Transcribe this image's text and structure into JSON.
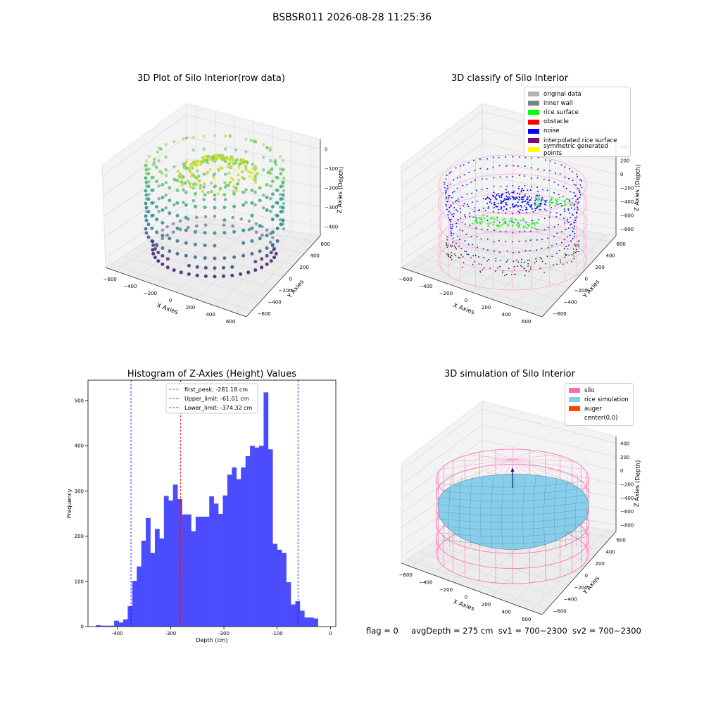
{
  "figure": {
    "suptitle": "BSBSR011 2026-08-28 11:25:36",
    "status_line": {
      "flag": "flag = 0",
      "avg_depth": "avgDepth = 275 cm",
      "sv1": "sv1 = 700~2300",
      "sv2": "sv2 = 700~2300"
    }
  },
  "panels": {
    "raw": {
      "title": "3D Plot of Silo Interior(row data)",
      "xlabel": "X Axies",
      "ylabel": "Y Axies",
      "zlabel": "Z Axies (Depth)"
    },
    "classify": {
      "title": "3D classify of Silo Interior",
      "xlabel": "X Axies",
      "ylabel": "Y Axies",
      "zlabel": "Z Axies (Depth)",
      "legend": [
        {
          "label": "original data",
          "color": "#b3b3b3"
        },
        {
          "label": "inner wall",
          "color": "#808080"
        },
        {
          "label": "rice surface",
          "color": "#00ff00"
        },
        {
          "label": "obstacle",
          "color": "#ff0000"
        },
        {
          "label": "noise",
          "color": "#0000ff"
        },
        {
          "label": "interpolated rice surface",
          "color": "#800080"
        },
        {
          "label": "symmetric generated points",
          "color": "#ffff00"
        }
      ]
    },
    "simulation": {
      "title": "3D simulation of Silo Interior",
      "xlabel": "X Axies",
      "ylabel": "Y Axies",
      "zlabel": "Z Axies (Depth)",
      "legend": [
        {
          "label": "silo",
          "color": "#ff69b4"
        },
        {
          "label": "rice simulation",
          "color": "#87ceeb"
        },
        {
          "label": "auger",
          "color": "#ff4500"
        },
        {
          "label": "center(0,0)",
          "color": "#ffffff"
        }
      ]
    }
  },
  "chart_data": [
    {
      "type": "scatter",
      "title": "3D Plot of Silo Interior(row data)",
      "xlabel": "X Axies",
      "ylabel": "Y Axies",
      "zlabel": "Z Axies (Depth)",
      "x_ticks": [
        "−600",
        "−400",
        "−200",
        "0",
        "200",
        "400",
        "600"
      ],
      "y_ticks": [
        "−600",
        "−400",
        "−200",
        "0",
        "200",
        "400",
        "600"
      ],
      "z_ticks": [
        "0",
        "−100",
        "−200",
        "−300",
        "−400"
      ],
      "xlim": [
        -650,
        650
      ],
      "ylim": [
        -650,
        650
      ],
      "zlim": [
        -450,
        0
      ],
      "colormap": "viridis",
      "grid": true
    },
    {
      "type": "scatter",
      "title": "3D classify of Silo Interior",
      "xlabel": "X Axies",
      "ylabel": "Y Axies",
      "zlabel": "Z Axies (Depth)",
      "x_ticks": [
        "−600",
        "−400",
        "−200",
        "0",
        "200",
        "400",
        "600"
      ],
      "y_ticks": [
        "−600",
        "−400",
        "−200",
        "0",
        "200",
        "400",
        "600"
      ],
      "z_ticks": [
        "400",
        "200",
        "0",
        "−200",
        "−400",
        "−600",
        "−800"
      ],
      "xlim": [
        -650,
        650
      ],
      "ylim": [
        -650,
        650
      ],
      "zlim": [
        -900,
        450
      ],
      "series": [
        {
          "name": "original data"
        },
        {
          "name": "inner wall"
        },
        {
          "name": "rice surface"
        },
        {
          "name": "obstacle"
        },
        {
          "name": "noise"
        },
        {
          "name": "interpolated rice surface"
        },
        {
          "name": "symmetric generated points"
        }
      ],
      "legend": "top-right",
      "grid": true
    },
    {
      "type": "bar",
      "title": "Histogram of Z-Axies (Height) Values",
      "xlabel": "Depth (cm)",
      "ylabel": "Frequency",
      "bin_start": -440,
      "bin_width": 8.5,
      "values": [
        3,
        2,
        2,
        2,
        13,
        9,
        16,
        45,
        101,
        133,
        190,
        240,
        163,
        216,
        195,
        289,
        279,
        314,
        282,
        248,
        248,
        211,
        243,
        243,
        243,
        288,
        272,
        249,
        290,
        336,
        352,
        326,
        352,
        377,
        400,
        396,
        400,
        518,
        392,
        183,
        170,
        163,
        98,
        49,
        56,
        35,
        20,
        20,
        18
      ],
      "xlim": [
        -455,
        10
      ],
      "ylim": [
        0,
        545
      ],
      "x_ticks": [
        -400,
        -300,
        -200,
        -100,
        0
      ],
      "y_ticks": [
        0,
        100,
        200,
        300,
        400,
        500
      ],
      "vlines": [
        {
          "label": "first_peak: -281.18 cm",
          "x": -281.18,
          "color": "#ff0000"
        },
        {
          "label": "Upper_limit: -61.01 cm",
          "x": -61.01,
          "color": "#0000ff"
        },
        {
          "label": "Lower_limit: -374.32 cm",
          "x": -374.32,
          "color": "#0000ff"
        }
      ],
      "bar_color": "#4c4cff",
      "legend": "top-center"
    },
    {
      "type": "area",
      "title": "3D simulation of Silo Interior",
      "xlabel": "X Axies",
      "ylabel": "Y Axies",
      "zlabel": "Z Axies (Depth)",
      "x_ticks": [
        "−600",
        "−400",
        "−200",
        "0",
        "200",
        "400",
        "600"
      ],
      "y_ticks": [
        "−600",
        "−400",
        "−200",
        "0",
        "200",
        "400",
        "600"
      ],
      "z_ticks": [
        "400",
        "200",
        "0",
        "−200",
        "−400",
        "−600",
        "−800"
      ],
      "xlim": [
        -650,
        650
      ],
      "ylim": [
        -650,
        650
      ],
      "zlim": [
        -900,
        450
      ],
      "series": [
        {
          "name": "silo"
        },
        {
          "name": "rice simulation"
        },
        {
          "name": "auger"
        },
        {
          "name": "center(0,0)"
        }
      ],
      "legend": "top-right",
      "grid": true
    }
  ]
}
